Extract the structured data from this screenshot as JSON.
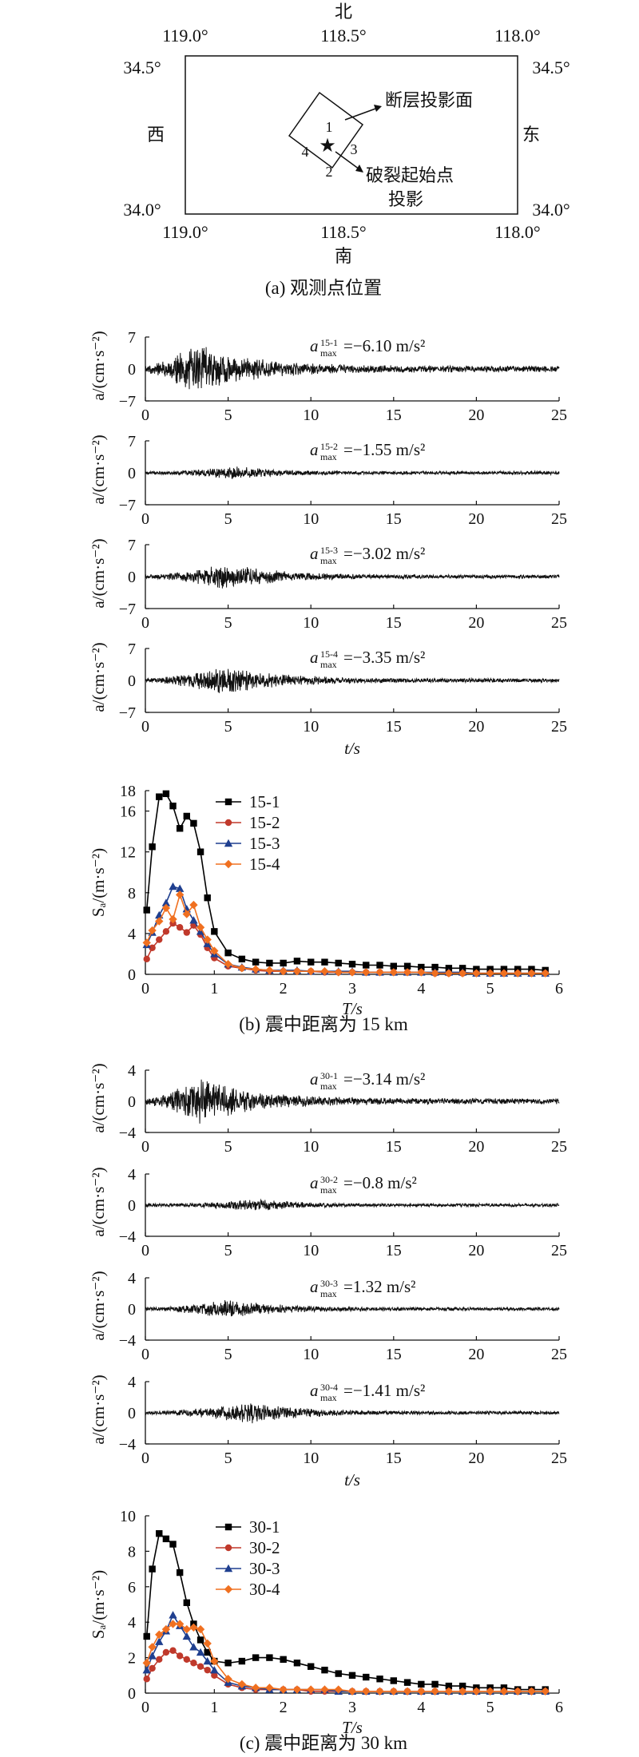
{
  "map": {
    "north": "北",
    "south": "南",
    "west": "西",
    "east": "东",
    "lon_left": "119.0°",
    "lon_mid": "118.5°",
    "lon_right": "118.0°",
    "lat_top": "34.5°",
    "lat_bottom": "34.0°",
    "fault_label": "断层投影面",
    "epicenter_label_line1": "破裂起始点",
    "epicenter_label_line2": "投影",
    "points": [
      "1",
      "2",
      "3",
      "4"
    ],
    "caption": "(a) 观测点位置"
  },
  "panel_b": {
    "caption": "(b) 震中距离为 15 km",
    "ts_ylabel": "a/(cm·s⁻²)",
    "ts_xlabel": "t/s",
    "sp_ylabel": "Sₐ/(m·s⁻²)",
    "sp_xlabel": "T/s"
  },
  "panel_c": {
    "caption": "(c) 震中距离为 30 km",
    "ts_ylabel": "a/(cm·s⁻²)",
    "ts_xlabel": "t/s",
    "sp_ylabel": "Sₐ/(m·s⁻²)",
    "sp_xlabel": "T/s"
  },
  "colors": {
    "s1": "#000000",
    "s2": "#c0392b",
    "s3": "#1f3f8f",
    "s4": "#f07020"
  },
  "chart_data": [
    {
      "type": "line",
      "id": "ts15-1",
      "xlim": [
        0,
        25
      ],
      "ylim": [
        -7,
        7
      ],
      "xticks": [
        0,
        5,
        10,
        15,
        20,
        25
      ],
      "yticks": [
        7,
        0,
        -7
      ],
      "xlabel": "",
      "ylabel": "a/(cm·s⁻²)",
      "annotation": {
        "sup": "15-1",
        "value": "=−6.10 m/s²"
      },
      "envelope": {
        "peak_time": 3.0,
        "peak_amp": 6.1
      }
    },
    {
      "type": "line",
      "id": "ts15-2",
      "xlim": [
        0,
        25
      ],
      "ylim": [
        -7,
        7
      ],
      "xticks": [
        0,
        5,
        10,
        15,
        20,
        25
      ],
      "yticks": [
        7,
        0,
        -7
      ],
      "xlabel": "",
      "ylabel": "a/(cm·s⁻²)",
      "annotation": {
        "sup": "15-2",
        "value": "=−1.55 m/s²"
      },
      "envelope": {
        "peak_time": 5.5,
        "peak_amp": 1.55
      }
    },
    {
      "type": "line",
      "id": "ts15-3",
      "xlim": [
        0,
        25
      ],
      "ylim": [
        -7,
        7
      ],
      "xticks": [
        0,
        5,
        10,
        15,
        20,
        25
      ],
      "yticks": [
        7,
        0,
        -7
      ],
      "xlabel": "",
      "ylabel": "a/(cm·s⁻²)",
      "annotation": {
        "sup": "15-3",
        "value": "=−3.02 m/s²"
      },
      "envelope": {
        "peak_time": 5.0,
        "peak_amp": 3.02
      }
    },
    {
      "type": "line",
      "id": "ts15-4",
      "xlim": [
        0,
        25
      ],
      "ylim": [
        -7,
        7
      ],
      "xticks": [
        0,
        5,
        10,
        15,
        20,
        25
      ],
      "yticks": [
        7,
        0,
        -7
      ],
      "xlabel": "t/s",
      "ylabel": "a/(cm·s⁻²)",
      "annotation": {
        "sup": "15-4",
        "value": "=−3.35 m/s²"
      },
      "envelope": {
        "peak_time": 5.0,
        "peak_amp": 3.35
      }
    },
    {
      "type": "line",
      "id": "sp15",
      "xlim": [
        0,
        6
      ],
      "ylim": [
        0,
        18
      ],
      "xticks": [
        0,
        1,
        2,
        3,
        4,
        5,
        6
      ],
      "yticks": [
        0,
        4,
        8,
        12,
        16,
        18
      ],
      "xlabel": "T/s",
      "ylabel": "Sₐ/(m·s⁻²)",
      "legend": "top-left",
      "x": [
        0.02,
        0.1,
        0.2,
        0.3,
        0.4,
        0.5,
        0.6,
        0.7,
        0.8,
        0.9,
        1.0,
        1.2,
        1.4,
        1.6,
        1.8,
        2.0,
        2.2,
        2.4,
        2.6,
        2.8,
        3.0,
        3.2,
        3.4,
        3.6,
        3.8,
        4.0,
        4.2,
        4.4,
        4.6,
        4.8,
        5.0,
        5.2,
        5.4,
        5.6,
        5.8
      ],
      "series": [
        {
          "name": "15-1",
          "values": [
            6.3,
            12.5,
            17.4,
            17.7,
            16.5,
            14.3,
            15.5,
            14.8,
            12.0,
            7.5,
            4.2,
            2.1,
            1.5,
            1.2,
            1.1,
            1.1,
            1.3,
            1.2,
            1.2,
            1.1,
            1.0,
            0.9,
            0.9,
            0.8,
            0.8,
            0.7,
            0.7,
            0.6,
            0.6,
            0.5,
            0.5,
            0.5,
            0.5,
            0.5,
            0.4
          ]
        },
        {
          "name": "15-2",
          "values": [
            1.5,
            2.6,
            3.4,
            4.2,
            5.0,
            4.6,
            4.1,
            4.8,
            3.9,
            2.6,
            1.6,
            0.8,
            0.6,
            0.4,
            0.3,
            0.3,
            0.3,
            0.3,
            0.2,
            0.2,
            0.2,
            0.2,
            0.2,
            0.2,
            0.2,
            0.2,
            0.1,
            0.1,
            0.1,
            0.1,
            0.1,
            0.1,
            0.1,
            0.1,
            0.1
          ]
        },
        {
          "name": "15-3",
          "values": [
            2.9,
            4.1,
            5.8,
            7.0,
            8.6,
            8.4,
            6.4,
            5.3,
            4.2,
            3.0,
            2.0,
            1.0,
            0.7,
            0.5,
            0.4,
            0.4,
            0.4,
            0.3,
            0.3,
            0.3,
            0.3,
            0.2,
            0.2,
            0.2,
            0.2,
            0.2,
            0.2,
            0.2,
            0.2,
            0.1,
            0.1,
            0.1,
            0.1,
            0.1,
            0.1
          ]
        },
        {
          "name": "15-4",
          "values": [
            3.1,
            4.3,
            5.2,
            6.5,
            5.4,
            7.8,
            5.9,
            6.8,
            4.6,
            3.4,
            2.3,
            1.0,
            0.6,
            0.5,
            0.4,
            0.3,
            0.3,
            0.3,
            0.3,
            0.2,
            0.2,
            0.2,
            0.2,
            0.2,
            0.2,
            0.2,
            0.1,
            0.1,
            0.1,
            0.1,
            0.1,
            0.1,
            0.1,
            0.1,
            0.1
          ]
        }
      ]
    },
    {
      "type": "line",
      "id": "ts30-1",
      "xlim": [
        0,
        25
      ],
      "ylim": [
        -4,
        4
      ],
      "xticks": [
        0,
        5,
        10,
        15,
        20,
        25
      ],
      "yticks": [
        4,
        0,
        -4
      ],
      "xlabel": "",
      "ylabel": "a/(cm·s⁻²)",
      "annotation": {
        "sup": "30-1",
        "value": "=−3.14 m/s²"
      },
      "envelope": {
        "peak_time": 3.2,
        "peak_amp": 3.14
      }
    },
    {
      "type": "line",
      "id": "ts30-2",
      "xlim": [
        0,
        25
      ],
      "ylim": [
        -4,
        4
      ],
      "xticks": [
        0,
        5,
        10,
        15,
        20,
        25
      ],
      "yticks": [
        4,
        0,
        -4
      ],
      "xlabel": "",
      "ylabel": "a/(cm·s⁻²)",
      "annotation": {
        "sup": "30-2",
        "value": "=−0.8 m/s²"
      },
      "envelope": {
        "peak_time": 7.0,
        "peak_amp": 0.8
      }
    },
    {
      "type": "line",
      "id": "ts30-3",
      "xlim": [
        0,
        25
      ],
      "ylim": [
        -4,
        4
      ],
      "xticks": [
        0,
        5,
        10,
        15,
        20,
        25
      ],
      "yticks": [
        4,
        0,
        -4
      ],
      "xlabel": "",
      "ylabel": "a/(cm·s⁻²)",
      "annotation": {
        "sup": "30-3",
        "value": "=1.32 m/s²"
      },
      "envelope": {
        "peak_time": 5.0,
        "peak_amp": 1.32
      }
    },
    {
      "type": "line",
      "id": "ts30-4",
      "xlim": [
        0,
        25
      ],
      "ylim": [
        -4,
        4
      ],
      "xticks": [
        0,
        5,
        10,
        15,
        20,
        25
      ],
      "yticks": [
        4,
        0,
        -4
      ],
      "xlabel": "t/s",
      "ylabel": "a/(cm·s⁻²)",
      "annotation": {
        "sup": "30-4",
        "value": "=−1.41 m/s²"
      },
      "envelope": {
        "peak_time": 6.5,
        "peak_amp": 1.41
      }
    },
    {
      "type": "line",
      "id": "sp30",
      "xlim": [
        0,
        6
      ],
      "ylim": [
        0,
        10
      ],
      "xticks": [
        0,
        1,
        2,
        3,
        4,
        5,
        6
      ],
      "yticks": [
        0,
        2,
        4,
        6,
        8,
        10
      ],
      "xlabel": "T/s",
      "ylabel": "Sₐ/(m·s⁻²)",
      "legend": "top-left",
      "x": [
        0.02,
        0.1,
        0.2,
        0.3,
        0.4,
        0.5,
        0.6,
        0.7,
        0.8,
        0.9,
        1.0,
        1.2,
        1.4,
        1.6,
        1.8,
        2.0,
        2.2,
        2.4,
        2.6,
        2.8,
        3.0,
        3.2,
        3.4,
        3.6,
        3.8,
        4.0,
        4.2,
        4.4,
        4.6,
        4.8,
        5.0,
        5.2,
        5.4,
        5.6,
        5.8
      ],
      "series": [
        {
          "name": "30-1",
          "values": [
            3.2,
            7.0,
            9.0,
            8.7,
            8.4,
            6.8,
            5.1,
            3.9,
            3.0,
            2.3,
            1.8,
            1.7,
            1.8,
            2.0,
            2.0,
            1.9,
            1.7,
            1.5,
            1.3,
            1.1,
            1.0,
            0.9,
            0.8,
            0.7,
            0.6,
            0.5,
            0.5,
            0.4,
            0.4,
            0.3,
            0.3,
            0.3,
            0.2,
            0.2,
            0.2
          ]
        },
        {
          "name": "30-2",
          "values": [
            0.8,
            1.4,
            1.9,
            2.3,
            2.4,
            2.1,
            1.9,
            1.7,
            1.5,
            1.3,
            1.0,
            0.5,
            0.3,
            0.2,
            0.2,
            0.2,
            0.2,
            0.1,
            0.1,
            0.1,
            0.1,
            0.1,
            0.1,
            0.1,
            0.1,
            0.1,
            0.1,
            0.1,
            0.1,
            0.1,
            0.1,
            0.1,
            0.1,
            0.1,
            0.1
          ]
        },
        {
          "name": "30-3",
          "values": [
            1.3,
            2.1,
            2.9,
            3.5,
            4.4,
            3.8,
            3.2,
            2.6,
            2.3,
            1.8,
            1.3,
            0.6,
            0.4,
            0.3,
            0.2,
            0.2,
            0.2,
            0.2,
            0.2,
            0.1,
            0.1,
            0.1,
            0.1,
            0.1,
            0.1,
            0.1,
            0.1,
            0.1,
            0.1,
            0.1,
            0.1,
            0.1,
            0.1,
            0.1,
            0.1
          ]
        },
        {
          "name": "30-4",
          "values": [
            1.7,
            2.6,
            3.3,
            3.6,
            3.9,
            3.9,
            3.6,
            3.7,
            3.6,
            2.8,
            1.8,
            0.8,
            0.5,
            0.3,
            0.3,
            0.2,
            0.2,
            0.2,
            0.2,
            0.2,
            0.1,
            0.1,
            0.1,
            0.1,
            0.1,
            0.1,
            0.1,
            0.1,
            0.1,
            0.1,
            0.1,
            0.1,
            0.1,
            0.1,
            0.1
          ]
        }
      ]
    }
  ]
}
